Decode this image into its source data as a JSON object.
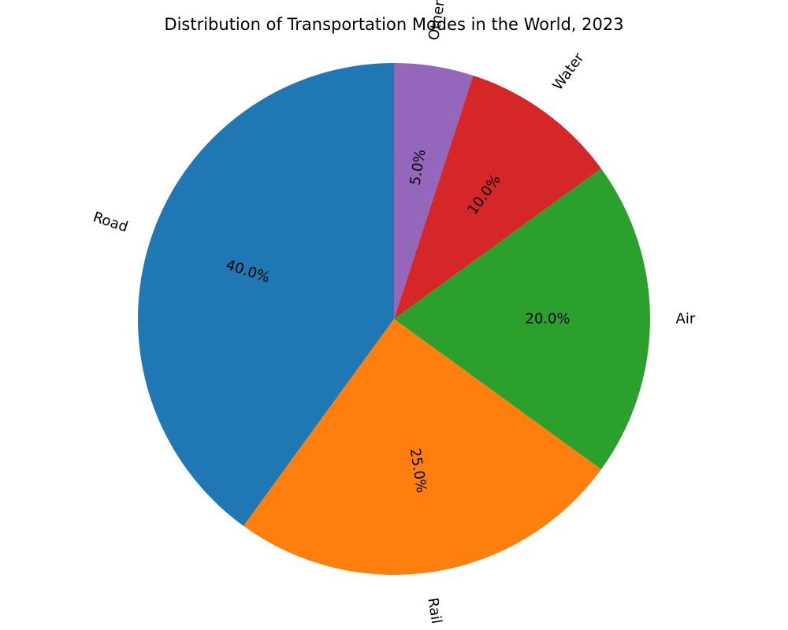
{
  "chart_data": {
    "type": "pie",
    "title": "Distribution of Transportation Modes in the World, 2023",
    "start_angle_deg": 90,
    "direction": "counterclockwise",
    "pct_format": "0.0%",
    "slices": [
      {
        "label": "Road",
        "value": 40,
        "pct_label": "40.0%",
        "color": "#1f77b4"
      },
      {
        "label": "Rail",
        "value": 25,
        "pct_label": "25.0%",
        "color": "#ff7f0e"
      },
      {
        "label": "Air",
        "value": 20,
        "pct_label": "20.0%",
        "color": "#2ca02c"
      },
      {
        "label": "Water",
        "value": 10,
        "pct_label": "10.0%",
        "color": "#d62728"
      },
      {
        "label": "Other",
        "value": 5,
        "pct_label": "5.0%",
        "color": "#9467bd"
      }
    ]
  }
}
